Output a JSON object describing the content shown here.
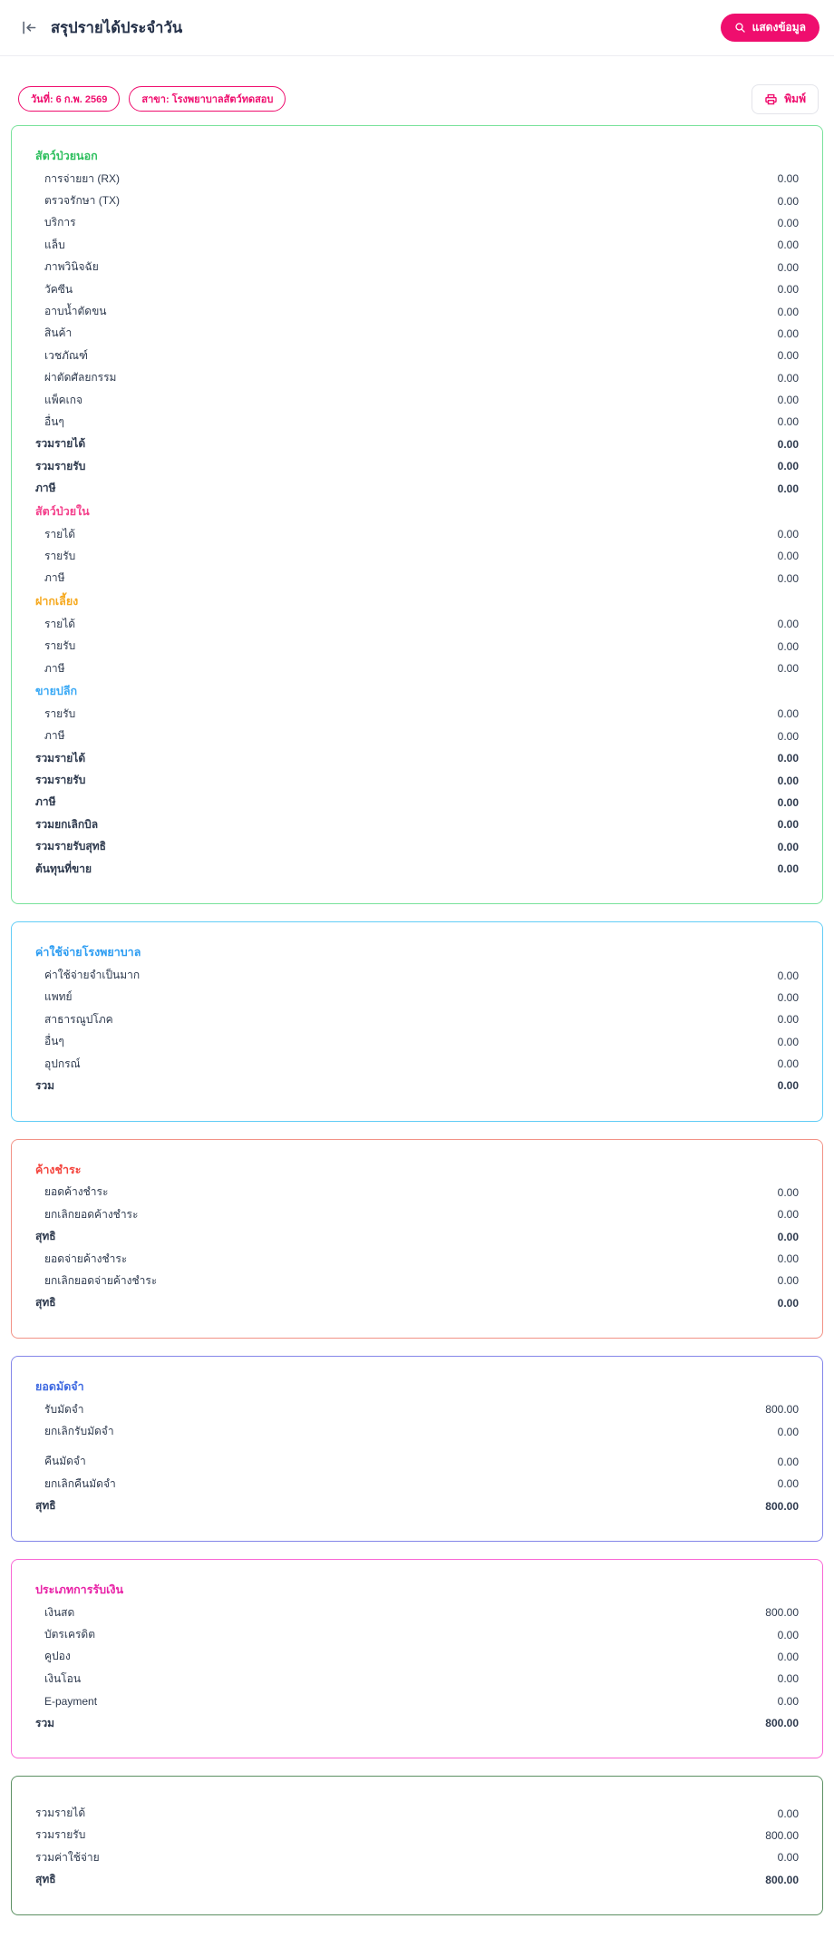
{
  "header": {
    "title": "สรุปรายได้ประจำวัน",
    "show_data_button": "แสดงข้อมูล"
  },
  "filters": {
    "date": "วันที่: 6 ก.พ. 2569",
    "branch": "สาขา: โรงพยาบาลสัตว์ทดสอบ",
    "print_button": "พิมพ์"
  },
  "colors": {
    "accent_pink": "#ef0e6e",
    "title_text": "#243048",
    "body_text": "#2e3a4e"
  },
  "cards": [
    {
      "name": "income-summary-card",
      "border": "#79e29b",
      "rows": [
        {
          "t": "h",
          "label": "สัตว์ป่วยนอก",
          "color": "#2ebf5e"
        },
        {
          "t": "i",
          "label": "การจ่ายยา (RX)",
          "value": "0.00"
        },
        {
          "t": "i",
          "label": "ตรวจรักษา (TX)",
          "value": "0.00"
        },
        {
          "t": "i",
          "label": "บริการ",
          "value": "0.00"
        },
        {
          "t": "i",
          "label": "แล็บ",
          "value": "0.00"
        },
        {
          "t": "i",
          "label": "ภาพวินิจฉัย",
          "value": "0.00"
        },
        {
          "t": "i",
          "label": "วัคซีน",
          "value": "0.00"
        },
        {
          "t": "i",
          "label": "อาบน้ำตัดขน",
          "value": "0.00"
        },
        {
          "t": "i",
          "label": "สินค้า",
          "value": "0.00"
        },
        {
          "t": "i",
          "label": "เวชภัณฑ์",
          "value": "0.00"
        },
        {
          "t": "i",
          "label": "ผ่าตัดศัลยกรรม",
          "value": "0.00"
        },
        {
          "t": "i",
          "label": "แพ็คเกจ",
          "value": "0.00"
        },
        {
          "t": "i",
          "label": "อื่นๆ",
          "value": "0.00"
        },
        {
          "t": "b",
          "label": "รวมรายได้",
          "value": "0.00"
        },
        {
          "t": "b",
          "label": "รวมรายรับ",
          "value": "0.00"
        },
        {
          "t": "b",
          "label": "ภาษี",
          "value": "0.00"
        },
        {
          "t": "h",
          "label": "สัตว์ป่วยใน",
          "color": "#f4418c"
        },
        {
          "t": "i",
          "label": "รายได้",
          "value": "0.00"
        },
        {
          "t": "i",
          "label": "รายรับ",
          "value": "0.00"
        },
        {
          "t": "i",
          "label": "ภาษี",
          "value": "0.00"
        },
        {
          "t": "h",
          "label": "ฝากเลี้ยง",
          "color": "#f6a91f"
        },
        {
          "t": "i",
          "label": "รายได้",
          "value": "0.00"
        },
        {
          "t": "i",
          "label": "รายรับ",
          "value": "0.00"
        },
        {
          "t": "i",
          "label": "ภาษี",
          "value": "0.00"
        },
        {
          "t": "h",
          "label": "ขายปลีก",
          "color": "#3aa9f5"
        },
        {
          "t": "i",
          "label": "รายรับ",
          "value": "0.00"
        },
        {
          "t": "i",
          "label": "ภาษี",
          "value": "0.00"
        },
        {
          "t": "b",
          "label": "รวมรายได้",
          "value": "0.00"
        },
        {
          "t": "b",
          "label": "รวมรายรับ",
          "value": "0.00"
        },
        {
          "t": "b",
          "label": "ภาษี",
          "value": "0.00"
        },
        {
          "t": "b",
          "label": "รวมยกเลิกบิล",
          "value": "0.00"
        },
        {
          "t": "b",
          "label": "รวมรายรับสุทธิ",
          "value": "0.00"
        },
        {
          "t": "b",
          "label": "ต้นทุนที่ขาย",
          "value": "0.00"
        }
      ]
    },
    {
      "name": "hospital-expense-card",
      "border": "#62cdf6",
      "rows": [
        {
          "t": "h",
          "label": "ค่าใช้จ่ายโรงพยาบาล",
          "color": "#2b9cf2"
        },
        {
          "t": "i",
          "label": "ค่าใช้จ่ายจำเป็นมาก",
          "value": "0.00"
        },
        {
          "t": "i",
          "label": "แพทย์",
          "value": "0.00"
        },
        {
          "t": "i",
          "label": "สาธารณูปโภค",
          "value": "0.00"
        },
        {
          "t": "i",
          "label": "อื่นๆ",
          "value": "0.00"
        },
        {
          "t": "i",
          "label": "อุปกรณ์",
          "value": "0.00"
        },
        {
          "t": "b",
          "label": "รวม",
          "value": "0.00"
        }
      ]
    },
    {
      "name": "outstanding-payment-card",
      "border": "#f29286",
      "rows": [
        {
          "t": "h",
          "label": "ค้างชำระ",
          "color": "#f4453e"
        },
        {
          "t": "i",
          "label": "ยอดค้างชำระ",
          "value": "0.00"
        },
        {
          "t": "i",
          "label": "ยกเลิกยอดค้างชำระ",
          "value": "0.00"
        },
        {
          "t": "b",
          "label": "สุทธิ",
          "value": "0.00"
        },
        {
          "t": "i",
          "label": "ยอดจ่ายค้างชำระ",
          "value": "0.00"
        },
        {
          "t": "i",
          "label": "ยกเลิกยอดจ่ายค้างชำระ",
          "value": "0.00"
        },
        {
          "t": "b",
          "label": "สุทธิ",
          "value": "0.00"
        }
      ]
    },
    {
      "name": "deposit-card",
      "border": "#8486e9",
      "rows": [
        {
          "t": "h",
          "label": "ยอดมัดจำ",
          "color": "#3f6ae1"
        },
        {
          "t": "i",
          "label": "รับมัดจำ",
          "value": "800.00"
        },
        {
          "t": "i",
          "label": "ยกเลิกรับมัดจำ",
          "value": "0.00"
        },
        {
          "t": "gap"
        },
        {
          "t": "i",
          "label": "คืนมัดจำ",
          "value": "0.00"
        },
        {
          "t": "i",
          "label": "ยกเลิกคืนมัดจำ",
          "value": "0.00"
        },
        {
          "t": "b",
          "label": "สุทธิ",
          "value": "800.00"
        }
      ]
    },
    {
      "name": "payment-type-card",
      "border": "#f966d5",
      "rows": [
        {
          "t": "h",
          "label": "ประเภทการรับเงิน",
          "color": "#e821a6"
        },
        {
          "t": "i",
          "label": "เงินสด",
          "value": "800.00"
        },
        {
          "t": "i",
          "label": "บัตรเครดิต",
          "value": "0.00"
        },
        {
          "t": "i",
          "label": "คูปอง",
          "value": "0.00"
        },
        {
          "t": "i",
          "label": "เงินโอน",
          "value": "0.00"
        },
        {
          "t": "i",
          "label": "E-payment",
          "value": "0.00"
        },
        {
          "t": "b",
          "label": "รวม",
          "value": "800.00"
        }
      ]
    },
    {
      "name": "grand-total-card",
      "border": "#5c9063",
      "pad_top": true,
      "rows": [
        {
          "t": "n",
          "label": "รวมรายได้",
          "value": "0.00"
        },
        {
          "t": "n",
          "label": "รวมรายรับ",
          "value": "800.00"
        },
        {
          "t": "n",
          "label": "รวมค่าใช้จ่าย",
          "value": "0.00"
        },
        {
          "t": "b",
          "label": "สุทธิ",
          "value": "800.00"
        }
      ]
    }
  ]
}
